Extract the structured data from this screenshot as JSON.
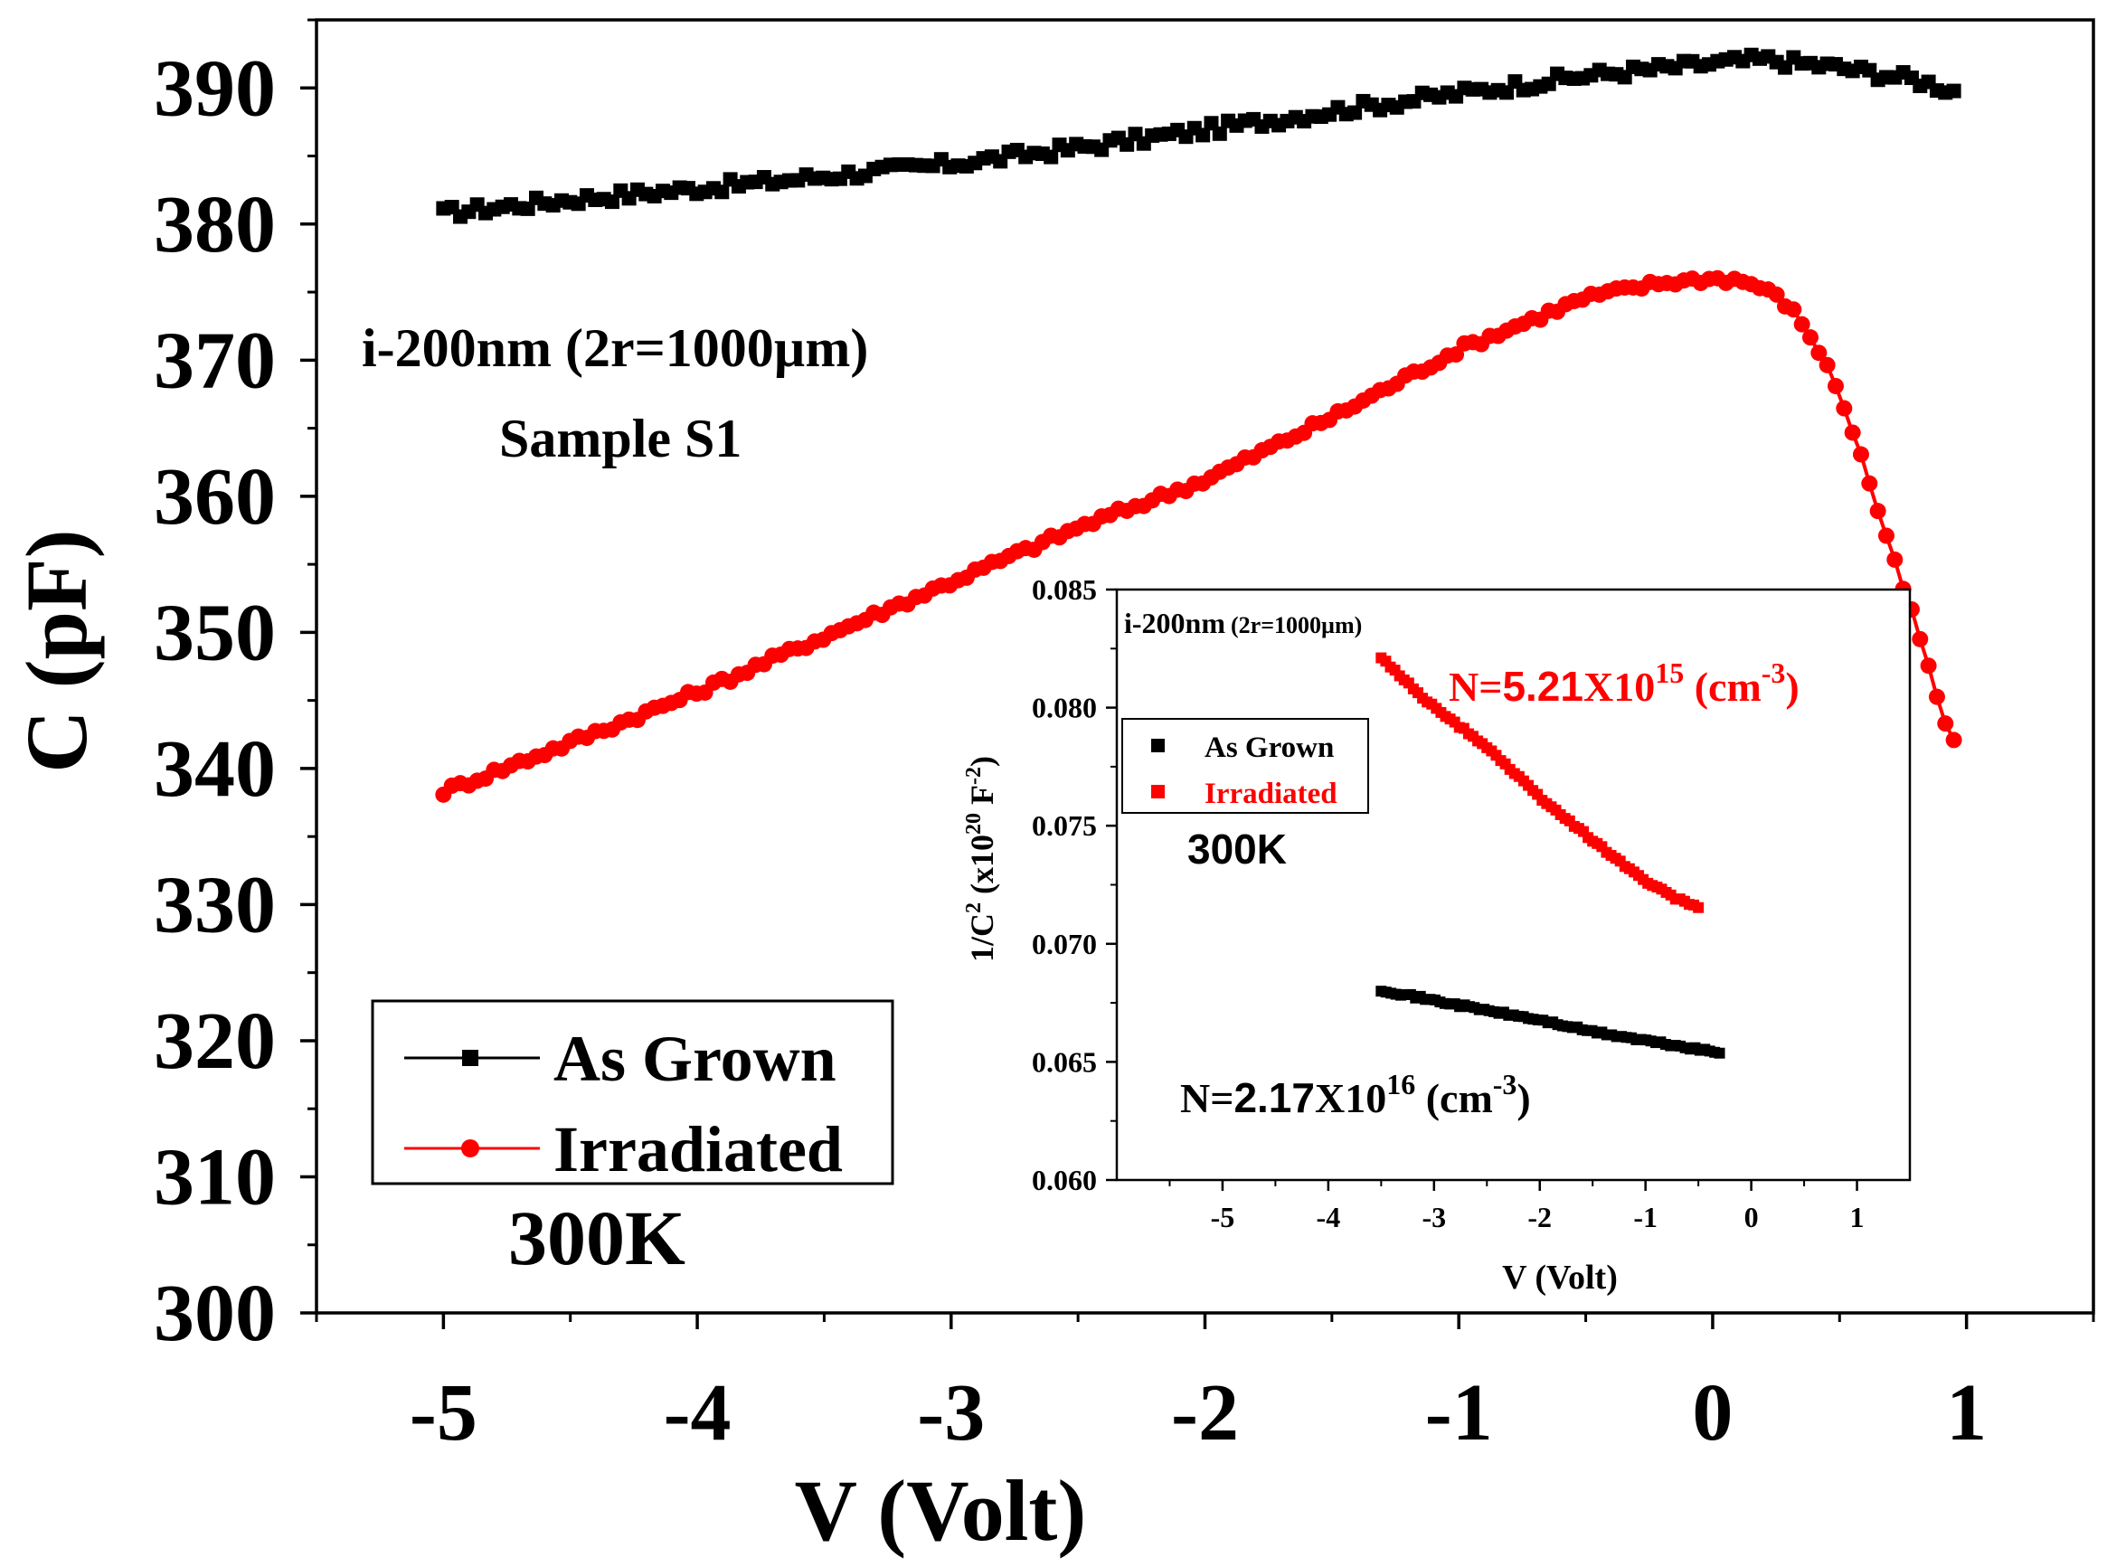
{
  "chart_data": [
    {
      "type": "line",
      "role": "main",
      "title": "",
      "xlabel": "V (Volt)",
      "ylabel": "C (pF)",
      "xlim": [
        -5.5,
        1.5
      ],
      "ylim": [
        300,
        395
      ],
      "xticks": [
        -5,
        -4,
        -3,
        -2,
        -1,
        0,
        1
      ],
      "yticks": [
        300,
        310,
        320,
        330,
        340,
        350,
        360,
        370,
        380,
        390
      ],
      "xtick_labels": [
        "-5",
        "-4",
        "-3",
        "-2",
        "-1",
        "0",
        "1"
      ],
      "ytick_labels": [
        "300",
        "310",
        "320",
        "330",
        "340",
        "350",
        "360",
        "370",
        "380",
        "390"
      ],
      "legend": {
        "placement": "lower-left",
        "entries": [
          {
            "label": "As Grown",
            "color": "#000000",
            "marker": "square"
          },
          {
            "label": "Irradiated",
            "color": "#ff0000",
            "marker": "circle"
          }
        ]
      },
      "annotations": {
        "sample_line1": "i-200nm (2r=1000µm)",
        "sample_line2": "Sample S1",
        "temperature": "300K"
      },
      "series": [
        {
          "name": "As Grown",
          "color": "#000000",
          "x": [
            -5.0,
            -4.5,
            -4.0,
            -3.5,
            -3.0,
            -2.5,
            -2.0,
            -1.5,
            -1.0,
            -0.5,
            0.0,
            0.2,
            0.5,
            0.8,
            0.95
          ],
          "y": [
            380.8,
            381.8,
            382.6,
            383.5,
            384.4,
            385.6,
            386.9,
            388.3,
            389.6,
            390.9,
            391.8,
            392.1,
            391.5,
            390.6,
            389.8
          ]
        },
        {
          "name": "Irradiated",
          "color": "#ff0000",
          "x": [
            -5.0,
            -4.5,
            -4.0,
            -3.5,
            -3.0,
            -2.5,
            -2.0,
            -1.5,
            -1.0,
            -0.5,
            -0.2,
            0.0,
            0.1,
            0.2,
            0.3,
            0.4,
            0.5,
            0.6,
            0.7,
            0.8,
            0.9,
            0.95
          ],
          "y": [
            338.3,
            341.9,
            345.6,
            349.7,
            353.7,
            357.7,
            361.2,
            365.8,
            370.8,
            374.6,
            375.7,
            376.0,
            375.9,
            375.3,
            374.0,
            371.4,
            367.6,
            362.1,
            356.0,
            350.6,
            344.2,
            341.8
          ]
        }
      ]
    },
    {
      "type": "line",
      "role": "inset",
      "title": "",
      "xlabel": "V (Volt)",
      "ylabel_parts": [
        "1/C",
        "2",
        " (x10",
        "20",
        " F",
        "-2",
        ")"
      ],
      "xlim": [
        -6,
        1.5
      ],
      "ylim": [
        0.06,
        0.085
      ],
      "xticks": [
        -5,
        -4,
        -3,
        -2,
        -1,
        0,
        1
      ],
      "yticks": [
        0.06,
        0.065,
        0.07,
        0.075,
        0.08,
        0.085
      ],
      "xtick_labels": [
        "-5",
        "-4",
        "-3",
        "-2",
        "-1",
        "0",
        "1"
      ],
      "ytick_labels": [
        "0.060",
        "0.065",
        "0.070",
        "0.075",
        "0.080",
        "0.085"
      ],
      "legend": {
        "placement": "top-left",
        "entries": [
          {
            "label": "As Grown",
            "color": "#000000",
            "marker": "square"
          },
          {
            "label": "Irradiated",
            "color": "#ff0000",
            "marker": "square"
          }
        ]
      },
      "annotations": {
        "sample": "i-200nm",
        "sample_sub": "(2r=1000µm)",
        "temperature": "300K",
        "n_irradiated": {
          "prefix": "N=",
          "mantissa": "5.21",
          "times": "X10",
          "exp": "15",
          "unit": " (cm",
          "unit_exp": "-3",
          "close": ")"
        },
        "n_as_grown": {
          "prefix": "N=",
          "mantissa": "2.17",
          "times": "X10",
          "exp": "16",
          "unit": " (cm",
          "unit_exp": "-3",
          "close": ")"
        }
      },
      "series": [
        {
          "name": "As Grown",
          "color": "#000000",
          "x": [
            -3.5,
            -3.0,
            -2.5,
            -2.0,
            -1.5,
            -1.0,
            -0.5,
            -0.3
          ],
          "y": [
            0.06805,
            0.0676,
            0.06718,
            0.06677,
            0.06628,
            0.0659,
            0.06553,
            0.06537
          ]
        },
        {
          "name": "Irradiated",
          "color": "#ff0000",
          "x": [
            -3.5,
            -3.0,
            -2.5,
            -2.0,
            -1.5,
            -1.0,
            -0.7,
            -0.5
          ],
          "y": [
            0.0821,
            0.08,
            0.07835,
            0.0762,
            0.07438,
            0.07265,
            0.0719,
            0.07157
          ]
        }
      ]
    }
  ]
}
